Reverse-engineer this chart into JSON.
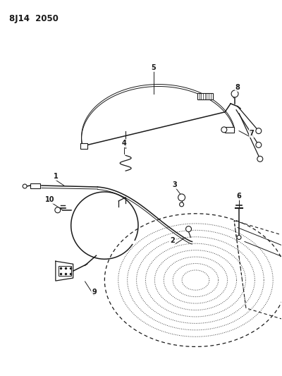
{
  "title": "8J14  2050",
  "bg_color": "#ffffff",
  "line_color": "#1a1a1a",
  "figsize": [
    4.0,
    5.33
  ],
  "dpi": 100
}
